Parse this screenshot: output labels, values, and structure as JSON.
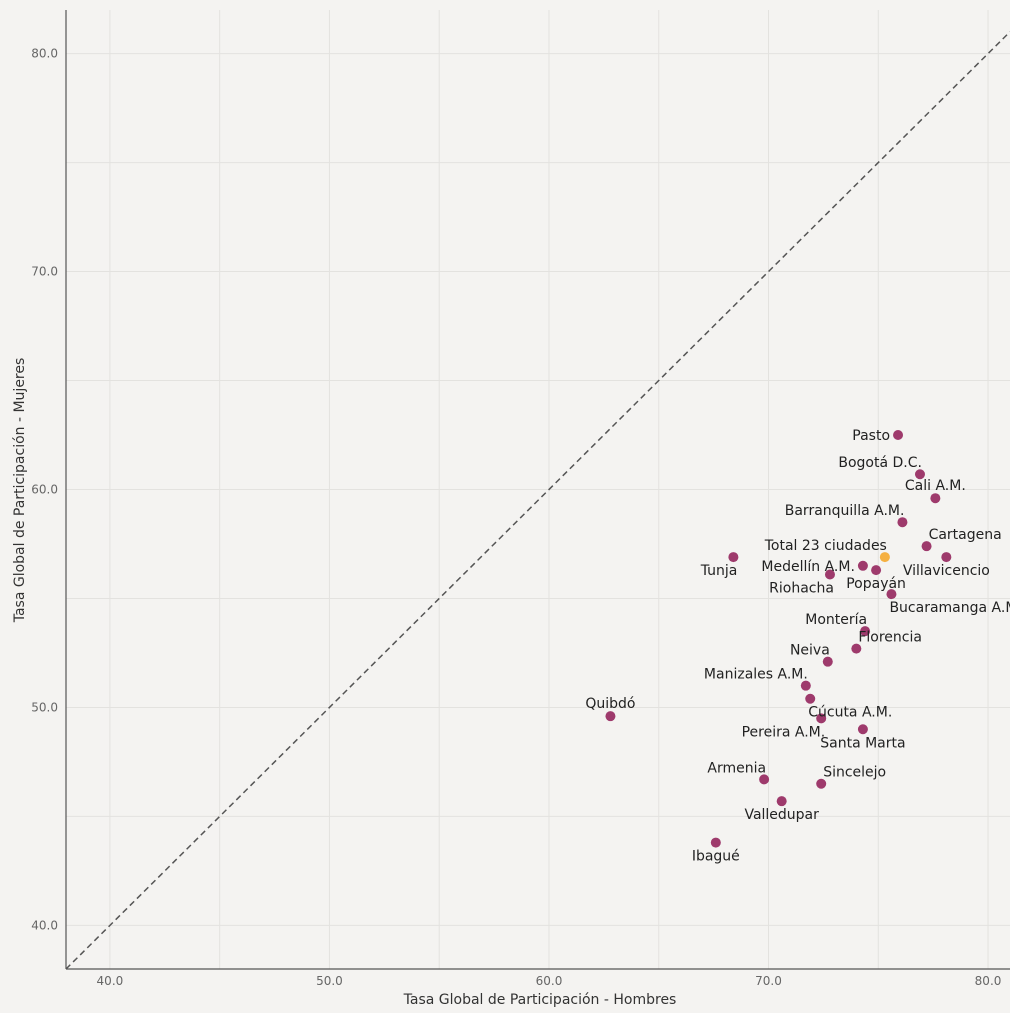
{
  "colors": {
    "background": "#f4f3f1",
    "grid": "#e3e2df",
    "axis": "#555555",
    "city_point": "#9e3a6c",
    "total_point": "#f5b041",
    "reference_line": "#555555"
  },
  "chart_data": {
    "type": "scatter",
    "xlabel": "Tasa Global de Participación - Hombres",
    "ylabel": "Tasa Global de Participación - Mujeres",
    "xlim": [
      38,
      81
    ],
    "ylim": [
      38,
      82
    ],
    "x_ticks": [
      40,
      50,
      60,
      70,
      80
    ],
    "y_ticks": [
      40,
      50,
      60,
      70,
      80
    ],
    "x_tick_labels": [
      "40.0",
      "50.0",
      "60.0",
      "70.0",
      "80.0"
    ],
    "y_tick_labels": [
      "40.0",
      "50.0",
      "60.0",
      "70.0",
      "80.0"
    ],
    "grid": true,
    "reference_line": "y = x (dashed)",
    "points": [
      {
        "label": "Pasto",
        "x": 75.9,
        "y": 62.5,
        "kind": "city",
        "label_pos": "left"
      },
      {
        "label": "Bogotá D.C.",
        "x": 76.9,
        "y": 60.7,
        "kind": "city",
        "label_pos": "above-left"
      },
      {
        "label": "Cali A.M.",
        "x": 77.6,
        "y": 59.6,
        "kind": "city",
        "label_pos": "above"
      },
      {
        "label": "Barranquilla A.M.",
        "x": 76.1,
        "y": 58.5,
        "kind": "city",
        "label_pos": "above-left"
      },
      {
        "label": "Cartagena",
        "x": 77.2,
        "y": 57.4,
        "kind": "city",
        "label_pos": "above-right"
      },
      {
        "label": "Total 23 ciudades",
        "x": 75.3,
        "y": 56.9,
        "kind": "total",
        "label_pos": "above-left"
      },
      {
        "label": "Villavicencio",
        "x": 78.1,
        "y": 56.9,
        "kind": "city",
        "label_pos": "below"
      },
      {
        "label": "Tunja",
        "x": 68.4,
        "y": 56.9,
        "kind": "city",
        "label_pos": "below-left"
      },
      {
        "label": "Medellín A.M.",
        "x": 74.3,
        "y": 56.5,
        "kind": "city",
        "label_pos": "left"
      },
      {
        "label": "Popayán",
        "x": 74.9,
        "y": 56.3,
        "kind": "city",
        "label_pos": "below"
      },
      {
        "label": "Riohacha",
        "x": 72.8,
        "y": 56.1,
        "kind": "city",
        "label_pos": "below-left"
      },
      {
        "label": "Bucaramanga A.M.",
        "x": 75.6,
        "y": 55.2,
        "kind": "city",
        "label_pos": "below-right"
      },
      {
        "label": "Montería",
        "x": 74.4,
        "y": 53.5,
        "kind": "city",
        "label_pos": "above-left"
      },
      {
        "label": "Florencia",
        "x": 74.0,
        "y": 52.7,
        "kind": "city",
        "label_pos": "above-right"
      },
      {
        "label": "Neiva",
        "x": 72.7,
        "y": 52.1,
        "kind": "city",
        "label_pos": "above-left"
      },
      {
        "label": "Manizales A.M.",
        "x": 71.7,
        "y": 51.0,
        "kind": "city",
        "label_pos": "above-left"
      },
      {
        "label": "Cúcuta A.M.",
        "x": 71.9,
        "y": 50.4,
        "kind": "city",
        "label_pos": "below-right"
      },
      {
        "label": "Quibdó",
        "x": 62.8,
        "y": 49.6,
        "kind": "city",
        "label_pos": "above"
      },
      {
        "label": "Pereira A.M.",
        "x": 72.4,
        "y": 49.5,
        "kind": "city",
        "label_pos": "below-left"
      },
      {
        "label": "Santa Marta",
        "x": 74.3,
        "y": 49.0,
        "kind": "city",
        "label_pos": "below"
      },
      {
        "label": "Armenia",
        "x": 69.8,
        "y": 46.7,
        "kind": "city",
        "label_pos": "above-left"
      },
      {
        "label": "Sincelejo",
        "x": 72.4,
        "y": 46.5,
        "kind": "city",
        "label_pos": "above-right"
      },
      {
        "label": "Valledupar",
        "x": 70.6,
        "y": 45.7,
        "kind": "city",
        "label_pos": "below"
      },
      {
        "label": "Ibagué",
        "x": 67.6,
        "y": 43.8,
        "kind": "city",
        "label_pos": "below"
      }
    ]
  }
}
